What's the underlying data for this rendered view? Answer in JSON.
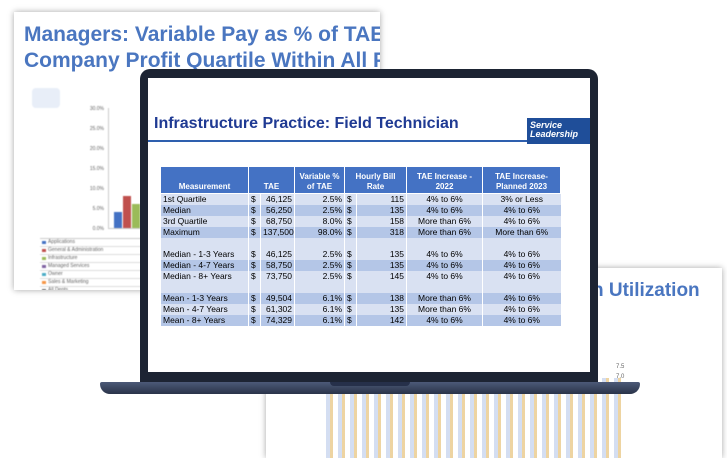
{
  "left_slide": {
    "title_lines": [
      "Managers: Variable Pay as % of TAE by",
      "Company Profit Quartile Within All PBMs"
    ],
    "yticks": [
      "30.0%",
      "25.0%",
      "20.0%",
      "15.0%",
      "10.0%",
      "5.0%",
      "0.0%"
    ],
    "legend": [
      "Applications",
      "General & Administration",
      "Infrastructure",
      "Managed Services",
      "Owner",
      "Sales & Marketing",
      "All Depts"
    ]
  },
  "right_slide": {
    "title": "n Utilization",
    "yticks": [
      "7.5",
      "7.0"
    ]
  },
  "screen": {
    "title": "Infrastructure Practice: Field Technician",
    "logo": [
      "Service",
      "Leadership"
    ],
    "table": {
      "headers": [
        "Measurement",
        "TAE",
        "Variable % of TAE",
        "Hourly Bill Rate",
        "TAE Increase - 2022",
        "TAE Increase- Planned 2023"
      ],
      "groups": [
        [
          [
            "1st Quartile",
            "$",
            "46,125",
            "2.5%",
            "$",
            "115",
            "4% to 6%",
            "3% or Less"
          ],
          [
            "Median",
            "$",
            "56,250",
            "2.5%",
            "$",
            "135",
            "4% to 6%",
            "4% to 6%"
          ],
          [
            "3rd Quartile",
            "$",
            "68,750",
            "8.0%",
            "$",
            "158",
            "More than 6%",
            "4% to 6%"
          ],
          [
            "Maximum",
            "$",
            "137,500",
            "98.0%",
            "$",
            "318",
            "More than 6%",
            "More than 6%"
          ]
        ],
        [
          [
            "Median - 1-3 Years",
            "$",
            "46,125",
            "2.5%",
            "$",
            "135",
            "4% to 6%",
            "4% to 6%"
          ],
          [
            "Median - 4-7 Years",
            "$",
            "58,750",
            "2.5%",
            "$",
            "135",
            "4% to 6%",
            "4% to 6%"
          ],
          [
            "Median - 8+ Years",
            "$",
            "73,750",
            "2.5%",
            "$",
            "145",
            "4% to 6%",
            "4% to 6%"
          ]
        ],
        [
          [
            "Mean - 1-3 Years",
            "$",
            "49,504",
            "6.1%",
            "$",
            "138",
            "More than 6%",
            "4% to 6%"
          ],
          [
            "Mean - 4-7 Years",
            "$",
            "61,302",
            "6.1%",
            "$",
            "135",
            "More than 6%",
            "4% to 6%"
          ],
          [
            "Mean - 8+ Years",
            "$",
            "74,329",
            "6.1%",
            "$",
            "142",
            "4% to 6%",
            "4% to 6%"
          ]
        ]
      ]
    }
  }
}
